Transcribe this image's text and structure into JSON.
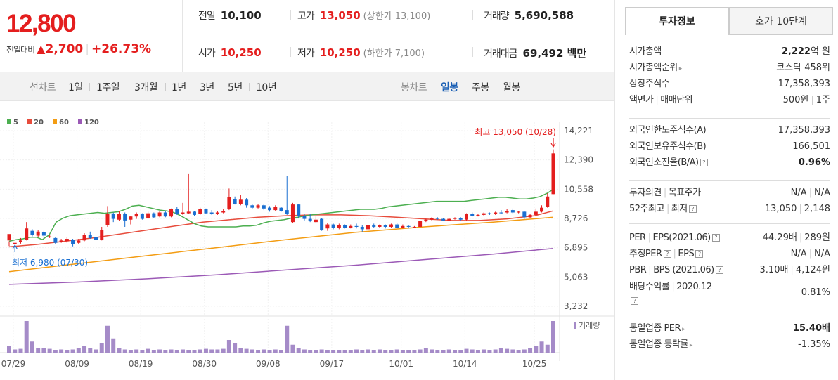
{
  "price": {
    "current": "12,800",
    "change_label": "전일대비",
    "change_arrow": "▲",
    "change_value": "2,700",
    "change_pct": "+26.73%"
  },
  "stats": {
    "prev_close_label": "전일",
    "prev_close": "10,100",
    "open_label": "시가",
    "open": "10,250",
    "high_label": "고가",
    "high": "13,050",
    "upper_limit": "(상한가 13,100)",
    "low_label": "저가",
    "low": "10,250",
    "lower_limit": "(하한가 7,100)",
    "volume_label": "거래량",
    "volume": "5,690,588",
    "amount_label": "거래대금",
    "amount": "69,492 백만"
  },
  "period_bar": {
    "line_label": "선차트",
    "line_periods": [
      "1일",
      "1주일",
      "3개월",
      "1년",
      "3년",
      "5년",
      "10년"
    ],
    "candle_label": "봉차트",
    "candle_periods": [
      "일봉",
      "주봉",
      "월봉"
    ],
    "active_candle": "일봉"
  },
  "chart_data": {
    "type": "candlestick",
    "legend": [
      {
        "name": "5",
        "color": "#4caf50"
      },
      {
        "name": "20",
        "color": "#e74c3c"
      },
      {
        "name": "60",
        "color": "#f39c12"
      },
      {
        "name": "120",
        "color": "#9b59b6"
      }
    ],
    "y_ticks": [
      "14,221",
      "12,390",
      "10,558",
      "8,726",
      "6,895",
      "5,063",
      "3,232"
    ],
    "y_tick_values": [
      14221,
      12390,
      10558,
      8726,
      6895,
      5063,
      3232
    ],
    "x_ticks": [
      "07/29",
      "08/09",
      "08/19",
      "08/30",
      "09/08",
      "09/17",
      "10/01",
      "10/14",
      "10/25"
    ],
    "high_annotation": "최고 13,050 (10/28)",
    "low_annotation": "최저 6,980 (07/30)",
    "volume_label": "거래량",
    "candles": [
      [
        7350,
        7750,
        7300,
        7000
      ],
      [
        7100,
        7200,
        7050,
        6980
      ],
      [
        7250,
        7350,
        7500,
        7150
      ],
      [
        7400,
        8100,
        8500,
        7350
      ],
      [
        7950,
        7700,
        8050,
        7600
      ],
      [
        7650,
        7900,
        8000,
        7550
      ],
      [
        7850,
        7650,
        7950,
        7500
      ],
      [
        7600,
        7600,
        7700,
        7500
      ],
      [
        7500,
        7200,
        7550,
        7100
      ],
      [
        7250,
        7350,
        7450,
        7200
      ],
      [
        7300,
        7450,
        7550,
        7200
      ],
      [
        7400,
        7100,
        7450,
        6980
      ],
      [
        7200,
        7350,
        7450,
        7100
      ],
      [
        7350,
        7700,
        7800,
        7300
      ],
      [
        7700,
        7500,
        7900,
        7450
      ],
      [
        7550,
        7400,
        7700,
        7350
      ],
      [
        7400,
        8000,
        8200,
        7350
      ],
      [
        8300,
        9000,
        9500,
        8200
      ],
      [
        9000,
        8700,
        9100,
        8500
      ],
      [
        8650,
        9000,
        9200,
        8550
      ],
      [
        9000,
        8600,
        9100,
        8200
      ],
      [
        8650,
        8850,
        8900,
        8350
      ],
      [
        8850,
        9000,
        9100,
        8700
      ],
      [
        9000,
        8700,
        9050,
        8650
      ],
      [
        8750,
        9050,
        9150,
        8700
      ],
      [
        9050,
        8800,
        9100,
        8750
      ],
      [
        8850,
        9100,
        9200,
        8800
      ],
      [
        9100,
        8850,
        9200,
        8800
      ],
      [
        8850,
        9300,
        9350,
        8800
      ],
      [
        9300,
        9000,
        9450,
        8950
      ],
      [
        9000,
        9100,
        9700,
        8950
      ],
      [
        9050,
        9150,
        11500,
        9000
      ],
      [
        9150,
        8950,
        9200,
        8900
      ],
      [
        9000,
        9300,
        9400,
        8950
      ],
      [
        9300,
        9050,
        9350,
        9000
      ],
      [
        9100,
        9000,
        9250,
        8950
      ],
      [
        9000,
        9100,
        9200,
        8950
      ],
      [
        9100,
        9200,
        9300,
        9050
      ],
      [
        9300,
        10050,
        10600,
        9250
      ],
      [
        9950,
        9650,
        10100,
        9600
      ],
      [
        9650,
        9900,
        10200,
        9550
      ],
      [
        9900,
        9550,
        10000,
        9400
      ],
      [
        9550,
        9400,
        9600,
        9300
      ],
      [
        9400,
        9550,
        9650,
        9350
      ],
      [
        9550,
        9350,
        9600,
        9250
      ],
      [
        9400,
        9250,
        9500,
        9150
      ],
      [
        9250,
        9450,
        9550,
        9200
      ],
      [
        9400,
        9200,
        9450,
        9150
      ],
      [
        9250,
        9000,
        11400,
        8950
      ],
      [
        8500,
        9600,
        9700,
        8450
      ],
      [
        9600,
        8900,
        9650,
        8750
      ],
      [
        8900,
        8700,
        9000,
        8600
      ],
      [
        8700,
        8550,
        9000,
        8500
      ],
      [
        8500,
        8650,
        8850,
        8450
      ],
      [
        8700,
        8000,
        8750,
        7950
      ],
      [
        8100,
        8350,
        8450,
        7950
      ],
      [
        8350,
        8150,
        8400,
        8050
      ],
      [
        8150,
        8300,
        8400,
        8050
      ],
      [
        8300,
        8150,
        8350,
        8100
      ],
      [
        8150,
        8250,
        8350,
        8100
      ],
      [
        8250,
        8200,
        8400,
        8100
      ],
      [
        8200,
        8050,
        8300,
        7900
      ],
      [
        8050,
        8300,
        8350,
        8000
      ],
      [
        8300,
        8200,
        8400,
        8150
      ],
      [
        8200,
        8300,
        8350,
        8150
      ],
      [
        8300,
        8200,
        8350,
        8100
      ],
      [
        8200,
        8350,
        8400,
        8150
      ],
      [
        8350,
        8150,
        8450,
        8100
      ],
      [
        8150,
        8250,
        8350,
        8100
      ],
      [
        8250,
        8200,
        8300,
        8100
      ],
      [
        8200,
        8200,
        8250,
        8150
      ],
      [
        8200,
        8550,
        8600,
        8150
      ],
      [
        8550,
        8650,
        8700,
        8500
      ],
      [
        8650,
        8750,
        8800,
        8600
      ],
      [
        8750,
        8700,
        8800,
        8650
      ],
      [
        8700,
        8600,
        8750,
        8550
      ],
      [
        8600,
        8700,
        8750,
        8550
      ],
      [
        8700,
        8750,
        8800,
        8650
      ],
      [
        8750,
        8650,
        8800,
        8600
      ],
      [
        8650,
        9000,
        9050,
        8600
      ],
      [
        9000,
        8900,
        9100,
        8850
      ],
      [
        8900,
        8950,
        9000,
        8850
      ],
      [
        8950,
        9050,
        9100,
        8900
      ],
      [
        9050,
        9000,
        9100,
        8950
      ],
      [
        9000,
        9100,
        9150,
        8950
      ],
      [
        9100,
        9050,
        9250,
        9000
      ],
      [
        9100,
        9200,
        9300,
        9050
      ],
      [
        9250,
        9100,
        9350,
        9050
      ],
      [
        9100,
        9150,
        9200,
        9050
      ],
      [
        9150,
        8800,
        9200,
        8700
      ],
      [
        8800,
        8950,
        9000,
        8750
      ],
      [
        8950,
        9150,
        9350,
        8900
      ],
      [
        9150,
        9400,
        9550,
        9100
      ],
      [
        9450,
        10100,
        10300,
        9400
      ],
      [
        10250,
        12800,
        13050,
        10250
      ]
    ],
    "ma5_points": [
      [
        0,
        7300
      ],
      [
        10,
        7400
      ],
      [
        20,
        7450
      ],
      [
        30,
        7550
      ],
      [
        40,
        7550
      ],
      [
        48,
        7400
      ],
      [
        58,
        7700
      ],
      [
        68,
        8500
      ],
      [
        78,
        8750
      ],
      [
        88,
        8900
      ],
      [
        98,
        8950
      ],
      [
        108,
        9000
      ],
      [
        118,
        9050
      ],
      [
        128,
        9100
      ],
      [
        138,
        9050
      ],
      [
        148,
        9100
      ],
      [
        158,
        9150
      ],
      [
        168,
        9300
      ],
      [
        178,
        9500
      ],
      [
        188,
        9550
      ],
      [
        198,
        9450
      ],
      [
        208,
        9350
      ],
      [
        218,
        9250
      ],
      [
        228,
        9200
      ],
      [
        238,
        9100
      ],
      [
        248,
        8900
      ],
      [
        258,
        8650
      ],
      [
        268,
        8400
      ],
      [
        278,
        8250
      ],
      [
        288,
        8200
      ],
      [
        298,
        8200
      ],
      [
        308,
        8200
      ],
      [
        318,
        8200
      ],
      [
        328,
        8200
      ],
      [
        338,
        8250
      ],
      [
        348,
        8250
      ],
      [
        358,
        8300
      ],
      [
        368,
        8450
      ],
      [
        378,
        8550
      ],
      [
        388,
        8600
      ],
      [
        398,
        8650
      ],
      [
        408,
        8750
      ],
      [
        418,
        8800
      ],
      [
        428,
        8900
      ],
      [
        438,
        8950
      ],
      [
        448,
        9000
      ],
      [
        458,
        9050
      ],
      [
        468,
        9100
      ],
      [
        478,
        9150
      ],
      [
        488,
        9200
      ],
      [
        498,
        9250
      ],
      [
        508,
        9300
      ],
      [
        518,
        9300
      ],
      [
        528,
        9300
      ],
      [
        538,
        9350
      ],
      [
        548,
        9450
      ],
      [
        558,
        9500
      ],
      [
        568,
        9550
      ],
      [
        578,
        9600
      ],
      [
        588,
        9650
      ],
      [
        598,
        9700
      ],
      [
        608,
        9750
      ],
      [
        618,
        9800
      ],
      [
        628,
        9800
      ],
      [
        638,
        9800
      ],
      [
        648,
        9800
      ],
      [
        658,
        9800
      ],
      [
        668,
        9850
      ],
      [
        678,
        9900
      ],
      [
        688,
        9950
      ],
      [
        698,
        10000
      ],
      [
        708,
        10050
      ],
      [
        718,
        10050
      ],
      [
        728,
        10000
      ],
      [
        738,
        9950
      ],
      [
        748,
        9950
      ],
      [
        758,
        10000
      ],
      [
        768,
        10100
      ],
      [
        778,
        10300
      ],
      [
        787,
        10550
      ]
    ],
    "ma20_points": [
      [
        0,
        6950
      ],
      [
        40,
        7100
      ],
      [
        80,
        7300
      ],
      [
        120,
        7500
      ],
      [
        160,
        7750
      ],
      [
        200,
        8000
      ],
      [
        240,
        8250
      ],
      [
        280,
        8500
      ],
      [
        320,
        8650
      ],
      [
        360,
        8800
      ],
      [
        400,
        8900
      ],
      [
        440,
        8950
      ],
      [
        480,
        8950
      ],
      [
        520,
        8900
      ],
      [
        560,
        8800
      ],
      [
        600,
        8700
      ],
      [
        640,
        8600
      ],
      [
        680,
        8600
      ],
      [
        720,
        8700
      ],
      [
        760,
        8900
      ],
      [
        787,
        9200
      ]
    ],
    "ma60_points": [
      [
        0,
        5400
      ],
      [
        100,
        5900
      ],
      [
        200,
        6400
      ],
      [
        300,
        6900
      ],
      [
        400,
        7400
      ],
      [
        500,
        7850
      ],
      [
        600,
        8200
      ],
      [
        700,
        8500
      ],
      [
        787,
        8800
      ]
    ],
    "ma120_points": [
      [
        0,
        4600
      ],
      [
        100,
        4750
      ],
      [
        200,
        4950
      ],
      [
        300,
        5200
      ],
      [
        400,
        5500
      ],
      [
        500,
        5800
      ],
      [
        600,
        6150
      ],
      [
        700,
        6500
      ],
      [
        787,
        6850
      ]
    ],
    "volume": [
      20,
      10,
      12,
      100,
      35,
      15,
      15,
      12,
      8,
      10,
      8,
      10,
      15,
      20,
      15,
      10,
      30,
      85,
      45,
      15,
      10,
      8,
      10,
      8,
      12,
      8,
      10,
      8,
      10,
      8,
      10,
      8,
      8,
      10,
      12,
      10,
      10,
      12,
      40,
      30,
      15,
      12,
      10,
      8,
      10,
      8,
      10,
      8,
      85,
      25,
      15,
      10,
      8,
      8,
      10,
      8,
      8,
      8,
      8,
      8,
      10,
      8,
      10,
      8,
      10,
      8,
      8,
      10,
      8,
      8,
      8,
      10,
      15,
      10,
      8,
      8,
      10,
      8,
      8,
      12,
      10,
      8,
      10,
      8,
      10,
      15,
      12,
      10,
      8,
      10,
      15,
      20,
      35,
      25,
      100
    ]
  },
  "right": {
    "tabs": [
      "투자정보",
      "호가 10단계"
    ],
    "section1": [
      {
        "k": "시가총액",
        "v_bold": "2,222",
        "v": "억 원"
      },
      {
        "k": "시가총액순위",
        "v_bold": "",
        "v": "코스닥 458위"
      },
      {
        "k": "상장주식수",
        "v_bold": "",
        "v": "17,358,393"
      },
      {
        "k1": "액면가",
        "k2": "매매단위",
        "v1": "500원",
        "v2": "1주"
      }
    ],
    "section2": [
      {
        "k": "외국인한도주식수(A)",
        "v": "17,358,393"
      },
      {
        "k": "외국인보유주식수(B)",
        "v": "166,501"
      },
      {
        "k": "외국인소진율(B/A)",
        "v": "0.96%"
      }
    ],
    "section3": [
      {
        "k1": "투자의견",
        "k2": "목표주가",
        "v1": "N/A",
        "v2": "N/A"
      },
      {
        "k1": "52주최고",
        "k2": "최저",
        "v1": "13,050",
        "v2": "2,148"
      }
    ],
    "section4": [
      {
        "k1": "PER",
        "k2": "EPS(2021.06)",
        "v1": "44.29배",
        "v2": "289원"
      },
      {
        "k1": "추정PER",
        "k2": "EPS",
        "v1": "N/A",
        "v2": "N/A"
      },
      {
        "k1": "PBR",
        "k2": "BPS (2021.06)",
        "v1": "3.10배",
        "v2": "4,124원"
      },
      {
        "k": "배당수익률",
        "k_sub": "2020.12",
        "v": "0.81%"
      }
    ],
    "section5": [
      {
        "k": "동일업종 PER",
        "v": "15.40배"
      },
      {
        "k": "동일업종 등락률",
        "v": "-1.35%"
      }
    ]
  }
}
